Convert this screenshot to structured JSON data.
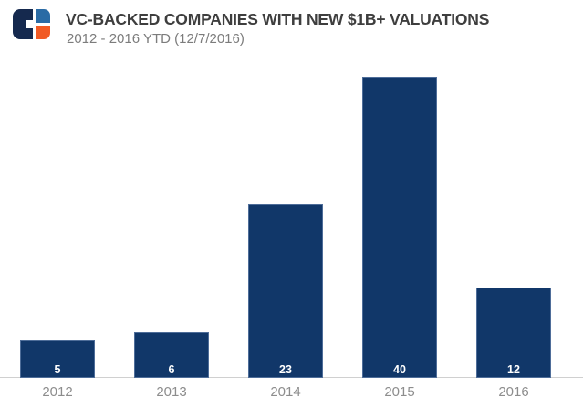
{
  "header": {
    "logo": "cb-insights-logo",
    "title": "VC-BACKED COMPANIES WITH NEW $1B+ VALUATIONS",
    "subtitle": "2012 - 2016 YTD (12/7/2016)"
  },
  "chart_data": {
    "type": "bar",
    "title": "VC-BACKED COMPANIES WITH NEW $1B+ VALUATIONS",
    "subtitle": "2012 - 2016 YTD (12/7/2016)",
    "categories": [
      "2012",
      "2013",
      "2014",
      "2015",
      "2016"
    ],
    "values": [
      5,
      6,
      23,
      40,
      12
    ],
    "xlabel": "",
    "ylabel": "",
    "ylim": [
      0,
      40
    ],
    "grid": false,
    "legend": "none",
    "y_axis_visible": false,
    "value_labels_position": "inside-bottom"
  },
  "colors": {
    "background": "#ffffff",
    "title-text": "#3e3e3e",
    "subtitle-text": "#7c7c7c",
    "bar-fill": "#113769",
    "bar-border": "#4e6d99",
    "bar-value-text": "#ffffff",
    "axis-line": "#d0d0d0",
    "tick-text": "#8d8d8d",
    "logo-navy": "#15294e",
    "logo-blue": "#2a6ba5",
    "logo-orange": "#f15a24"
  }
}
